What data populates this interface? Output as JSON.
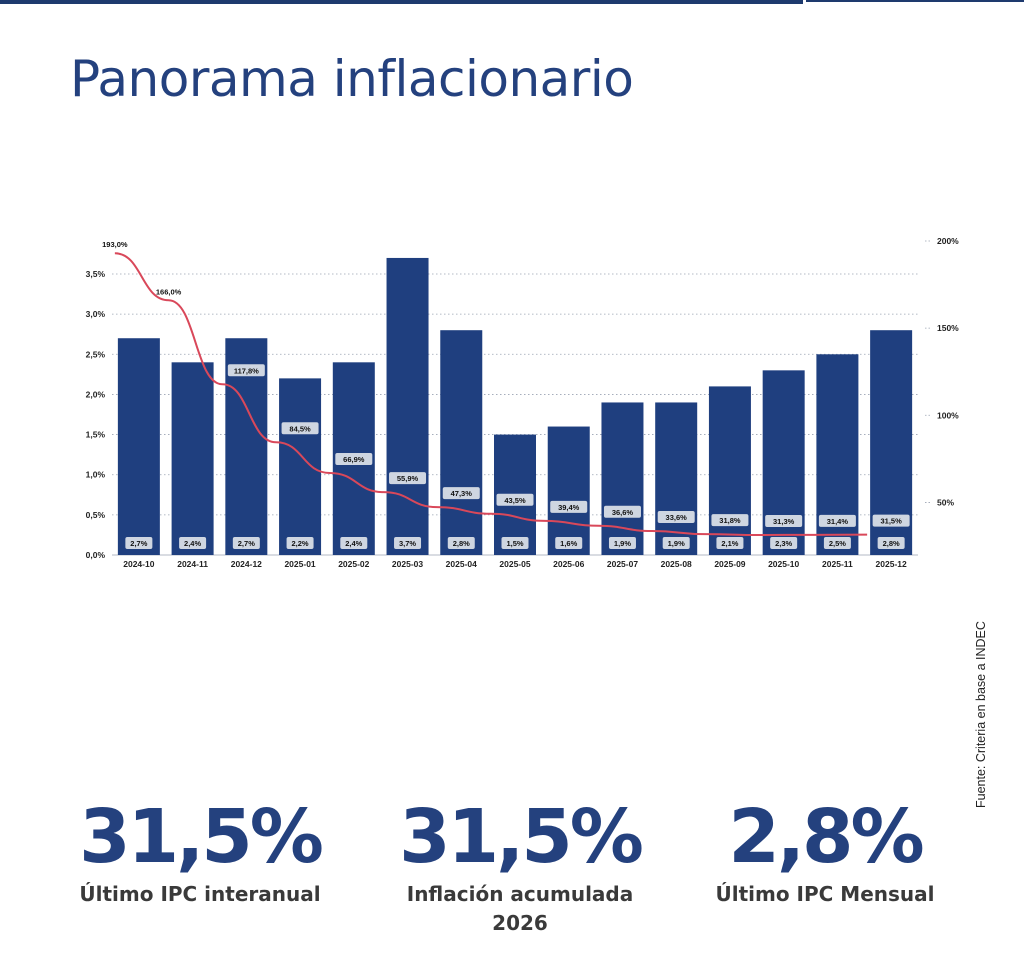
{
  "page": {
    "title": "Panorama inflacionario",
    "source": "Fuente: Criteria en base a INDEC"
  },
  "chart_data": {
    "type": "bar",
    "categories": [
      "2024-10",
      "2024-11",
      "2024-12",
      "2025-01",
      "2025-02",
      "2025-03",
      "2025-04",
      "2025-05",
      "2025-06",
      "2025-07",
      "2025-08",
      "2025-09",
      "2025-10",
      "2025-11",
      "2025-12"
    ],
    "series": [
      {
        "kind": "bar",
        "axis": "left",
        "values": [
          2.7,
          2.4,
          2.7,
          2.2,
          2.4,
          3.7,
          2.8,
          1.5,
          1.6,
          1.9,
          1.9,
          2.1,
          2.3,
          2.5,
          2.8
        ],
        "labels": [
          "2,7%",
          "2,4%",
          "2,7%",
          "2,2%",
          "2,4%",
          "3,7%",
          "2,8%",
          "1,5%",
          "1,6%",
          "1,9%",
          "1,9%",
          "2,1%",
          "2,3%",
          "2,5%",
          "2,8%"
        ],
        "color": "#1f3f7f"
      },
      {
        "kind": "line",
        "axis": "right",
        "values": [
          193.0,
          166.0,
          117.8,
          84.5,
          66.9,
          55.9,
          47.3,
          43.5,
          39.4,
          36.6,
          33.6,
          31.8,
          31.3,
          31.4,
          31.5
        ],
        "labels": [
          "193,0%",
          "166,0%",
          "117,8%",
          "84,5%",
          "66,9%",
          "55,9%",
          "47,3%",
          "43,5%",
          "39,4%",
          "36,6%",
          "33,6%",
          "31,8%",
          "31,3%",
          "31,4%",
          "31,5%"
        ],
        "color": "#d9485a"
      }
    ],
    "y_left": {
      "ylim": [
        0,
        3.5
      ],
      "ticks": [
        "0,0%",
        "0,5%",
        "1,0%",
        "1,5%",
        "2,0%",
        "2,5%",
        "3,0%",
        "3,5%"
      ]
    },
    "y_right": {
      "ylim": [
        25,
        200
      ],
      "ticks": [
        "50%",
        "100%",
        "150%",
        "200%"
      ]
    },
    "grid": true,
    "grid_style": "dotted",
    "legend": "none"
  },
  "stats": [
    {
      "value": "31,5%",
      "label": "Último IPC interanual"
    },
    {
      "value": "31,5%",
      "label": "Inflación acumulada 2026"
    },
    {
      "value": "2,8%",
      "label": "Último IPC Mensual"
    }
  ],
  "colors": {
    "brand": "#24417e",
    "bar": "#1f3f7f",
    "line": "#d9485a",
    "badge": "#cfd6e1"
  }
}
